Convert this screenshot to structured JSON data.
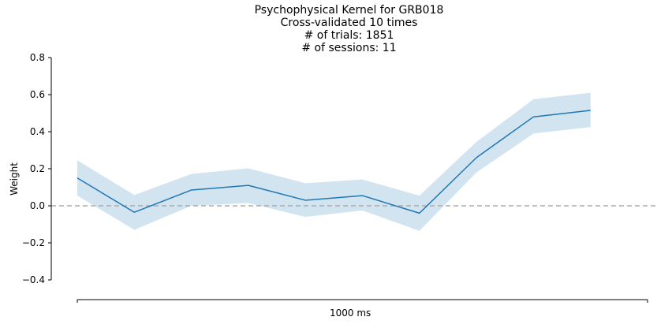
{
  "chart_data": {
    "type": "line",
    "title_lines": [
      "Psychophysical Kernel for GRB018",
      "Cross-validated 10 times",
      "# of trials: 1851",
      "# of sessions: 11"
    ],
    "xlabel": "1000 ms",
    "ylabel": "Weight",
    "ylim": [
      -0.4,
      0.8
    ],
    "yticks": [
      -0.4,
      -0.2,
      0.0,
      0.2,
      0.4,
      0.6,
      0.8
    ],
    "ytick_labels": [
      "−0.4",
      "−0.2",
      "0.0",
      "0.2",
      "0.4",
      "0.6",
      "0.8"
    ],
    "x": [
      1,
      2,
      3,
      4,
      5,
      6,
      7,
      8,
      9,
      10
    ],
    "xlim": [
      1,
      11
    ],
    "series": [
      {
        "name": "kernel",
        "color": "#1f77b4",
        "values": [
          0.15,
          -0.035,
          0.085,
          0.11,
          0.03,
          0.055,
          -0.04,
          0.26,
          0.48,
          0.515
        ],
        "upper": [
          0.245,
          0.058,
          0.172,
          0.202,
          0.122,
          0.142,
          0.055,
          0.345,
          0.575,
          0.61
        ],
        "lower": [
          0.055,
          -0.13,
          0.0,
          0.015,
          -0.06,
          -0.025,
          -0.135,
          0.18,
          0.39,
          0.425
        ],
        "band_color": "#1f77b4",
        "band_opacity": 0.2
      }
    ],
    "reference_line": {
      "y": 0.0,
      "style": "dashed",
      "color": "#aaaaaa"
    },
    "grid": false,
    "legend": false
  }
}
